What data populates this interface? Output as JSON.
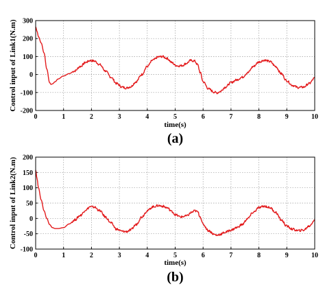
{
  "chart_data": [
    {
      "type": "line",
      "panel_label": "(a)",
      "xlabel": "time(s)",
      "ylabel": "Control input of Link1(N.m)",
      "xlim": [
        0,
        10
      ],
      "ylim": [
        -200,
        300
      ],
      "xticks": [
        0,
        1,
        2,
        3,
        4,
        5,
        6,
        7,
        8,
        9,
        10
      ],
      "yticks": [
        -200,
        -100,
        0,
        100,
        200,
        300
      ],
      "xtick_labels": [
        "0",
        "1",
        "2",
        "3",
        "4",
        "5",
        "6",
        "7",
        "8",
        "9",
        "10"
      ],
      "ytick_labels": [
        "-200",
        "-100",
        "0",
        "100",
        "200",
        "300"
      ],
      "grid": "dotted",
      "line_color": "#e31a1c",
      "series": [
        {
          "x": [
            0,
            0.05,
            0.1,
            0.2,
            0.3,
            0.4,
            0.5,
            0.55,
            0.6,
            0.7,
            0.8,
            1.0,
            1.2,
            1.4,
            1.6,
            1.8,
            1.95,
            2.1,
            2.3,
            2.5,
            2.7,
            2.9,
            3.1,
            3.25,
            3.4,
            3.6,
            3.8,
            4.0,
            4.2,
            4.4,
            4.55,
            4.7,
            4.9,
            5.0,
            5.1,
            5.25,
            5.4,
            5.55,
            5.7,
            5.8,
            5.9,
            6.0,
            6.2,
            6.4,
            6.5,
            6.6,
            6.8,
            7.0,
            7.2,
            7.4,
            7.6,
            7.8,
            8.0,
            8.2,
            8.4,
            8.6,
            8.8,
            9.0,
            9.2,
            9.4,
            9.6,
            9.8,
            10.0
          ],
          "y": [
            265,
            240,
            210,
            175,
            120,
            30,
            -45,
            -55,
            -52,
            -40,
            -25,
            -8,
            5,
            20,
            45,
            68,
            78,
            75,
            55,
            20,
            -15,
            -50,
            -70,
            -75,
            -68,
            -40,
            0,
            45,
            80,
            98,
            100,
            90,
            65,
            52,
            48,
            50,
            62,
            78,
            75,
            55,
            10,
            -40,
            -80,
            -98,
            -102,
            -95,
            -70,
            -45,
            -30,
            -15,
            10,
            45,
            70,
            80,
            72,
            45,
            5,
            -35,
            -60,
            -72,
            -70,
            -50,
            -20
          ]
        }
      ]
    },
    {
      "type": "line",
      "panel_label": "(b)",
      "xlabel": "time(s)",
      "ylabel": "Control input of Link2(N.m)",
      "xlim": [
        0,
        10
      ],
      "ylim": [
        -100,
        200
      ],
      "xticks": [
        0,
        1,
        2,
        3,
        4,
        5,
        6,
        7,
        8,
        9,
        10
      ],
      "yticks": [
        -100,
        -50,
        0,
        50,
        100,
        150,
        200
      ],
      "xtick_labels": [
        "0",
        "1",
        "2",
        "3",
        "4",
        "5",
        "6",
        "7",
        "8",
        "9",
        "10"
      ],
      "ytick_labels": [
        "-100",
        "-50",
        "0",
        "50",
        "100",
        "150",
        "200"
      ],
      "grid": "dotted",
      "line_color": "#e31a1c",
      "series": [
        {
          "x": [
            0,
            0.05,
            0.1,
            0.2,
            0.3,
            0.4,
            0.5,
            0.6,
            0.7,
            0.8,
            1.0,
            1.2,
            1.4,
            1.6,
            1.8,
            1.95,
            2.1,
            2.3,
            2.5,
            2.7,
            2.9,
            3.1,
            3.25,
            3.4,
            3.6,
            3.8,
            4.0,
            4.2,
            4.4,
            4.55,
            4.7,
            4.9,
            5.0,
            5.2,
            5.4,
            5.6,
            5.7,
            5.8,
            5.9,
            6.0,
            6.2,
            6.4,
            6.5,
            6.6,
            6.8,
            7.0,
            7.2,
            7.4,
            7.6,
            7.8,
            8.0,
            8.2,
            8.4,
            8.6,
            8.8,
            9.0,
            9.2,
            9.4,
            9.6,
            9.8,
            10.0
          ],
          "y": [
            158,
            130,
            100,
            60,
            25,
            0,
            -20,
            -30,
            -33,
            -33,
            -30,
            -18,
            -5,
            10,
            28,
            38,
            37,
            25,
            5,
            -15,
            -35,
            -42,
            -43,
            -38,
            -20,
            5,
            25,
            38,
            42,
            40,
            35,
            22,
            12,
            5,
            8,
            20,
            25,
            22,
            5,
            -20,
            -40,
            -52,
            -55,
            -52,
            -45,
            -38,
            -30,
            -20,
            0,
            20,
            35,
            40,
            35,
            20,
            -5,
            -25,
            -35,
            -40,
            -38,
            -25,
            -5
          ]
        }
      ]
    }
  ]
}
